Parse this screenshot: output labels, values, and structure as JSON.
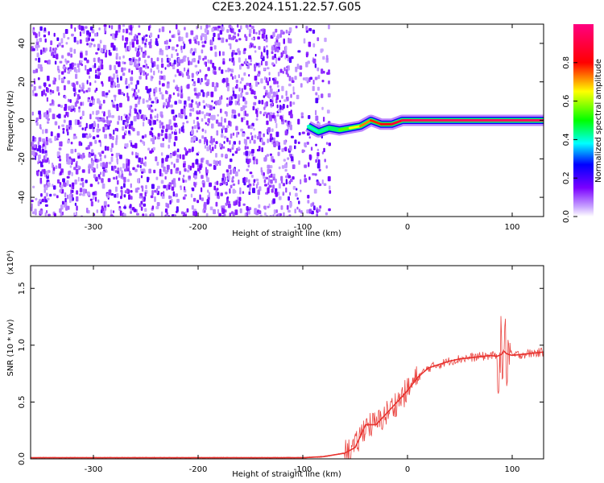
{
  "title": "C2E3.2024.151.22.57.G05",
  "chart_data": [
    {
      "type": "heatmap",
      "xlabel": "Height of straight line (km)",
      "ylabel": "Frequency (Hz)",
      "xlim": [
        -360,
        130
      ],
      "ylim": [
        -50,
        50
      ],
      "xticks": [
        -300,
        -200,
        -100,
        0,
        100
      ],
      "yticks": [
        -40,
        -20,
        0,
        20,
        40
      ],
      "colorbar": {
        "label": "Normalized spectral amplitude",
        "range": [
          0,
          1
        ],
        "ticks": [
          0.0,
          0.2,
          0.4,
          0.6,
          0.8
        ]
      },
      "noise_region_x": [
        -360,
        -75
      ],
      "signal_track": {
        "x": [
          -95,
          -85,
          -75,
          -65,
          -55,
          -45,
          -35,
          -25,
          -15,
          -5,
          5,
          30,
          60,
          90,
          100,
          130
        ],
        "freq_hz": [
          -3,
          -6,
          -4,
          -5,
          -4,
          -3,
          0,
          -2,
          -2,
          0,
          0,
          0,
          0,
          0,
          0,
          0
        ],
        "amplitude": [
          0.35,
          0.45,
          0.4,
          0.5,
          0.6,
          0.7,
          0.75,
          0.8,
          0.85,
          0.9,
          0.95,
          0.95,
          0.95,
          0.95,
          0.95,
          0.95
        ]
      }
    },
    {
      "type": "line",
      "xlabel": "Height of straight line (km)",
      "ylabel": "SNR (10 * v/v)",
      "y_multiplier": "(x10⁴)",
      "xlim": [
        -360,
        130
      ],
      "ylim": [
        0,
        1.7
      ],
      "xticks": [
        -300,
        -200,
        -100,
        0,
        100
      ],
      "yticks": [
        0.0,
        0.5,
        1.0,
        1.5
      ],
      "color": "#e8322e",
      "series": [
        {
          "x": [
            -360,
            -300,
            -200,
            -100,
            -80,
            -60,
            -50,
            -45,
            -40,
            -35,
            -30,
            -25,
            -20,
            -15,
            -10,
            -5,
            0,
            5,
            10,
            15,
            20,
            30,
            40,
            50,
            60,
            70,
            80,
            85,
            90,
            92,
            94,
            96,
            100,
            110,
            120,
            130
          ],
          "y": [
            0.01,
            0.01,
            0.01,
            0.01,
            0.02,
            0.05,
            0.1,
            0.2,
            0.3,
            0.3,
            0.3,
            0.35,
            0.4,
            0.45,
            0.5,
            0.55,
            0.6,
            0.66,
            0.72,
            0.76,
            0.8,
            0.83,
            0.86,
            0.88,
            0.89,
            0.9,
            0.91,
            0.9,
            0.92,
            0.95,
            0.93,
            0.92,
            0.91,
            0.92,
            0.93,
            0.94
          ]
        }
      ]
    }
  ]
}
